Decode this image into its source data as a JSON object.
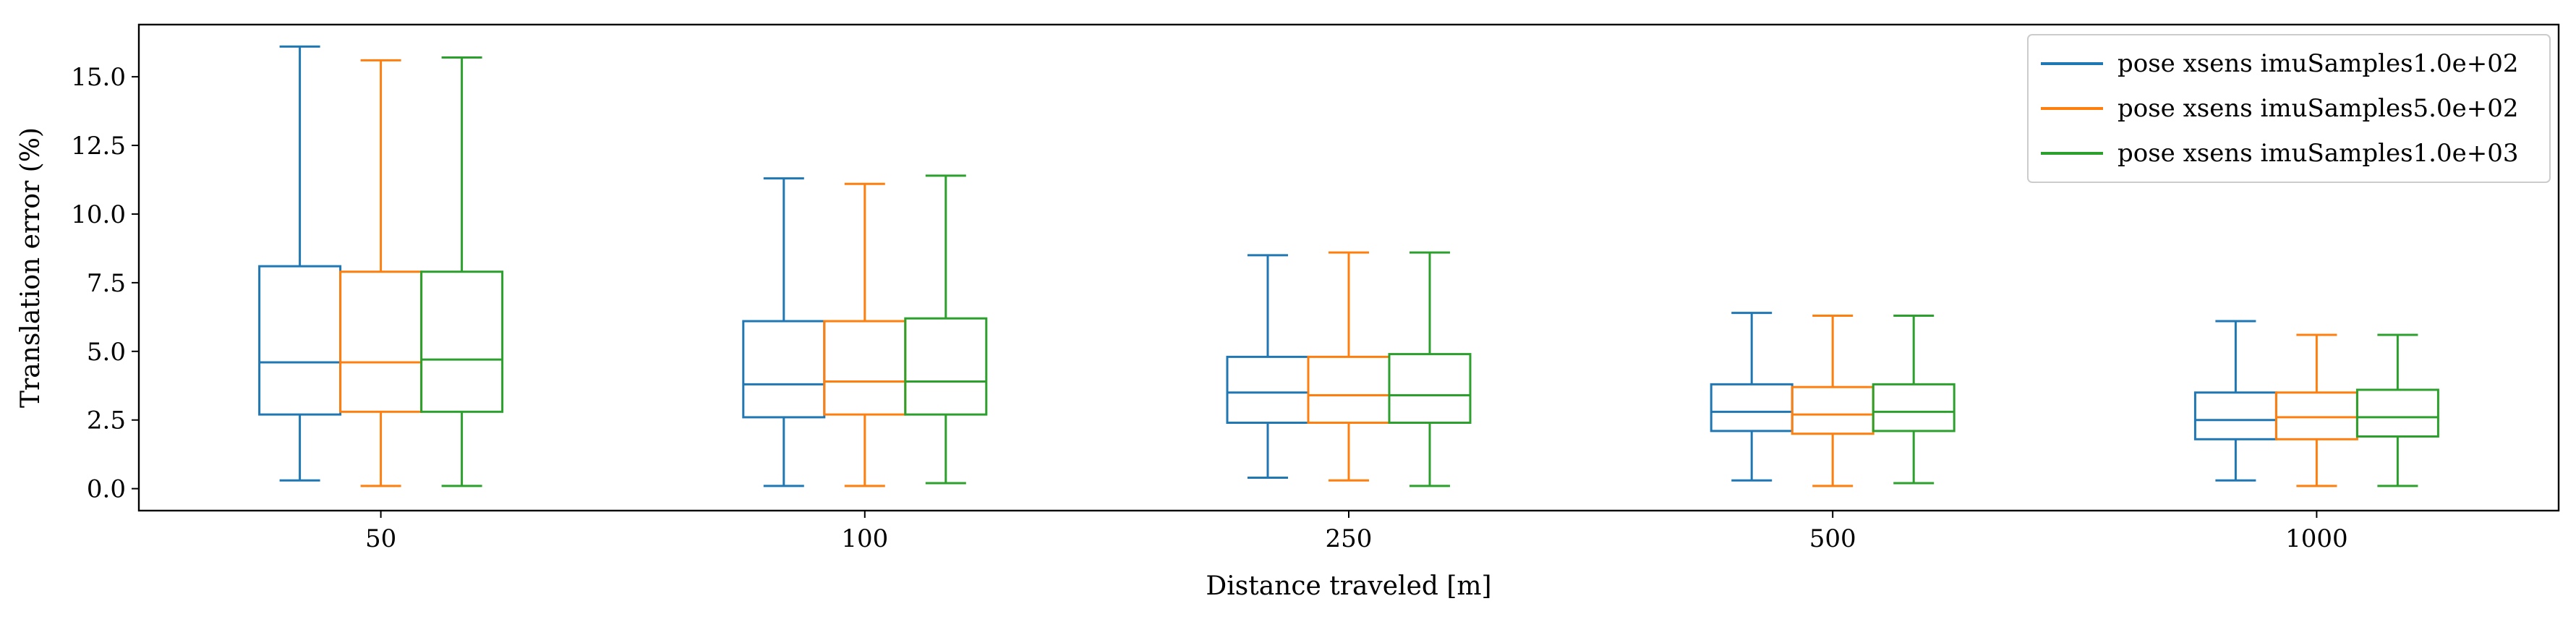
{
  "chart_data": {
    "type": "box",
    "xlabel": "Distance traveled [m]",
    "ylabel": "Translation error (%)",
    "categories": [
      "50",
      "100",
      "250",
      "500",
      "1000"
    ],
    "ylim": [
      -0.8,
      16.9
    ],
    "yticks": [
      0.0,
      2.5,
      5.0,
      7.5,
      10.0,
      12.5,
      15.0
    ],
    "ytick_labels": [
      "0.0",
      "2.5",
      "5.0",
      "7.5",
      "10.0",
      "12.5",
      "15.0"
    ],
    "grid": false,
    "legend_position": "top-right",
    "series": [
      {
        "name": "pose xsens imuSamples1.0e+02",
        "color": "#1f77b4",
        "boxes": [
          {
            "min": 0.3,
            "q1": 2.7,
            "median": 4.6,
            "q3": 8.1,
            "max": 16.1
          },
          {
            "min": 0.1,
            "q1": 2.6,
            "median": 3.8,
            "q3": 6.1,
            "max": 11.3
          },
          {
            "min": 0.4,
            "q1": 2.4,
            "median": 3.5,
            "q3": 4.8,
            "max": 8.5
          },
          {
            "min": 0.3,
            "q1": 2.1,
            "median": 2.8,
            "q3": 3.8,
            "max": 6.4
          },
          {
            "min": 0.3,
            "q1": 1.8,
            "median": 2.5,
            "q3": 3.5,
            "max": 6.1
          }
        ]
      },
      {
        "name": "pose xsens imuSamples5.0e+02",
        "color": "#ff7f0e",
        "boxes": [
          {
            "min": 0.1,
            "q1": 2.8,
            "median": 4.6,
            "q3": 7.9,
            "max": 15.6
          },
          {
            "min": 0.1,
            "q1": 2.7,
            "median": 3.9,
            "q3": 6.1,
            "max": 11.1
          },
          {
            "min": 0.3,
            "q1": 2.4,
            "median": 3.4,
            "q3": 4.8,
            "max": 8.6
          },
          {
            "min": 0.1,
            "q1": 2.0,
            "median": 2.7,
            "q3": 3.7,
            "max": 6.3
          },
          {
            "min": 0.1,
            "q1": 1.8,
            "median": 2.6,
            "q3": 3.5,
            "max": 5.6
          }
        ]
      },
      {
        "name": "pose xsens imuSamples1.0e+03",
        "color": "#2ca02c",
        "boxes": [
          {
            "min": 0.1,
            "q1": 2.8,
            "median": 4.7,
            "q3": 7.9,
            "max": 15.7
          },
          {
            "min": 0.2,
            "q1": 2.7,
            "median": 3.9,
            "q3": 6.2,
            "max": 11.4
          },
          {
            "min": 0.1,
            "q1": 2.4,
            "median": 3.4,
            "q3": 4.9,
            "max": 8.6
          },
          {
            "min": 0.2,
            "q1": 2.1,
            "median": 2.8,
            "q3": 3.8,
            "max": 6.3
          },
          {
            "min": 0.1,
            "q1": 1.9,
            "median": 2.6,
            "q3": 3.6,
            "max": 5.6
          }
        ]
      }
    ]
  }
}
